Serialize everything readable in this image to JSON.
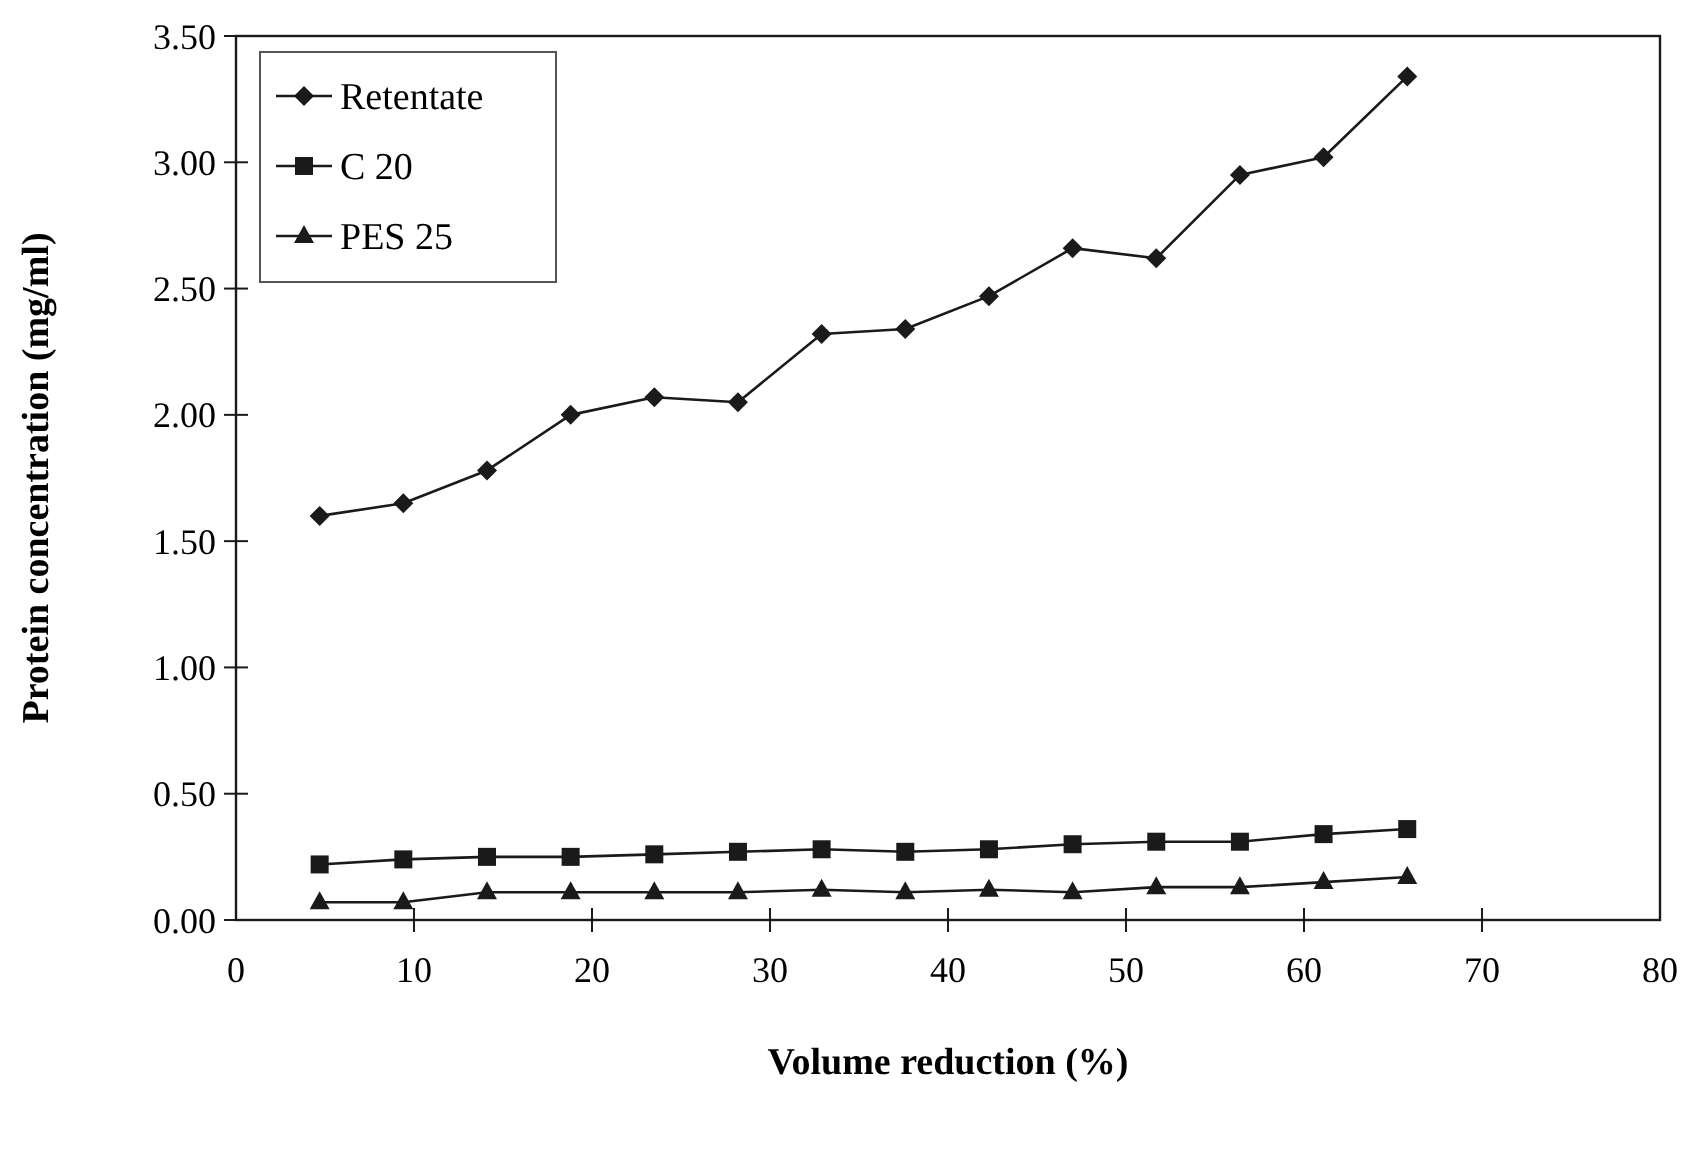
{
  "chart_data": {
    "type": "line",
    "xlabel": "Volume reduction (%)",
    "ylabel": "Protein concentration (mg/ml)",
    "x": [
      4.7,
      9.4,
      14.1,
      18.8,
      23.5,
      28.2,
      32.9,
      37.6,
      42.3,
      47,
      51.7,
      56.4,
      61.1,
      65.8
    ],
    "series": [
      {
        "name": "Retentate",
        "color": "#1a1a1a",
        "marker": "diamond",
        "values": [
          1.6,
          1.65,
          1.78,
          2.0,
          2.07,
          2.05,
          2.32,
          2.34,
          2.47,
          2.66,
          2.62,
          2.95,
          3.02,
          3.34
        ]
      },
      {
        "name": "C 20",
        "color": "#1a1a1a",
        "marker": "square",
        "values": [
          0.22,
          0.24,
          0.25,
          0.25,
          0.26,
          0.27,
          0.28,
          0.27,
          0.28,
          0.3,
          0.31,
          0.31,
          0.34,
          0.36
        ]
      },
      {
        "name": "PES 25",
        "color": "#1a1a1a",
        "marker": "triangle",
        "values": [
          0.07,
          0.07,
          0.11,
          0.11,
          0.11,
          0.11,
          0.12,
          0.11,
          0.12,
          0.11,
          0.13,
          0.13,
          0.15,
          0.17
        ]
      }
    ],
    "xlim": [
      0,
      80
    ],
    "xticks": [
      0,
      10,
      20,
      30,
      40,
      50,
      60,
      70,
      80
    ],
    "ylim": [
      0,
      3.5
    ],
    "yticks": [
      {
        "value": 0,
        "label": "0.00"
      },
      {
        "value": 0.5,
        "label": "0.50"
      },
      {
        "value": 1,
        "label": "1.00"
      },
      {
        "value": 1.5,
        "label": "1.50"
      },
      {
        "value": 2,
        "label": "2.00"
      },
      {
        "value": 2.5,
        "label": "2.50"
      },
      {
        "value": 3,
        "label": "3.00"
      },
      {
        "value": 3.5,
        "label": "3.50"
      }
    ],
    "grid": false,
    "legend": "top left",
    "line_style": "solid"
  }
}
